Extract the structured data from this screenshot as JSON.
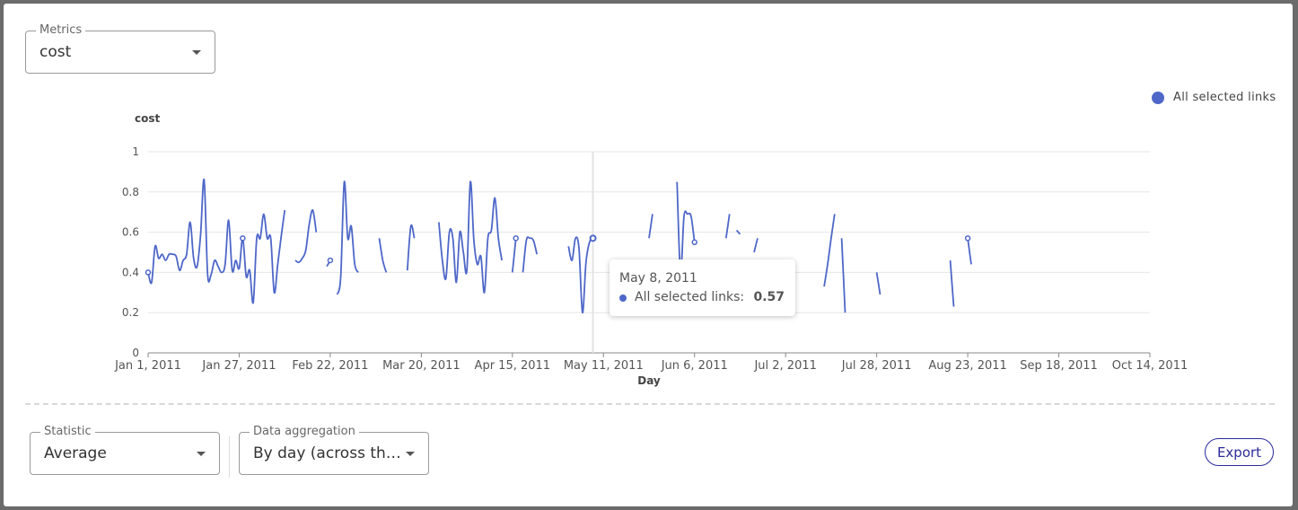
{
  "metrics": {
    "label": "Metrics",
    "value": "cost"
  },
  "statistic": {
    "label": "Statistic",
    "value": "Average"
  },
  "aggregation": {
    "label": "Data aggregation",
    "value": "By day (across the…"
  },
  "export_label": "Export",
  "legend": {
    "label": "All selected links",
    "color": "#4e67c8"
  },
  "tooltip": {
    "date": "May 8, 2011",
    "series": "All selected links:",
    "value": "0.57"
  },
  "colors": {
    "series": "#4e67c8",
    "grid": "#e6e6e6",
    "axis": "#888888"
  },
  "chart_data": {
    "type": "line",
    "ylabel": "cost",
    "xlabel": "Day",
    "ylim": [
      0,
      1
    ],
    "yticks": [
      0,
      0.2,
      0.4,
      0.6,
      0.8,
      1
    ],
    "ytick_labels": [
      "0",
      "0.2",
      "0.4",
      "0.6",
      "0.8",
      "1"
    ],
    "xlim": [
      "2011-01-01",
      "2011-10-14"
    ],
    "xticks": [
      "2011-01-01",
      "2011-01-27",
      "2011-02-22",
      "2011-03-20",
      "2011-04-15",
      "2011-05-11",
      "2011-06-06",
      "2011-07-02",
      "2011-07-28",
      "2011-08-23",
      "2011-09-18",
      "2011-10-14"
    ],
    "xtick_labels": [
      "Jan 1, 2011",
      "Jan 27, 2011",
      "Feb 22, 2011",
      "Mar 20, 2011",
      "Apr 15, 2011",
      "May 11, 2011",
      "Jun 6, 2011",
      "Jul 2, 2011",
      "Jul 28, 2011",
      "Aug 23, 2011",
      "Sep 18, 2011",
      "Oct 14, 2011"
    ],
    "grid": true,
    "legend_position": "top-right",
    "highlight": {
      "x": "2011-05-08",
      "y": 0.57
    },
    "series": [
      {
        "name": "All selected links",
        "segments": [
          [
            [
              "2011-01-01",
              0.4
            ],
            [
              "2011-01-02",
              0.35
            ],
            [
              "2011-01-03",
              0.53
            ],
            [
              "2011-01-04",
              0.47
            ],
            [
              "2011-01-05",
              0.49
            ],
            [
              "2011-01-06",
              0.46
            ],
            [
              "2011-01-07",
              0.49
            ],
            [
              "2011-01-08",
              0.49
            ],
            [
              "2011-01-09",
              0.48
            ],
            [
              "2011-01-10",
              0.41
            ],
            [
              "2011-01-11",
              0.46
            ],
            [
              "2011-01-12",
              0.49
            ],
            [
              "2011-01-13",
              0.65
            ],
            [
              "2011-01-14",
              0.47
            ],
            [
              "2011-01-15",
              0.43
            ],
            [
              "2011-01-16",
              0.59
            ],
            [
              "2011-01-17",
              0.86
            ],
            [
              "2011-01-18",
              0.39
            ],
            [
              "2011-01-19",
              0.39
            ],
            [
              "2011-01-20",
              0.46
            ],
            [
              "2011-01-21",
              0.43
            ],
            [
              "2011-01-22",
              0.4
            ],
            [
              "2011-01-23",
              0.44
            ],
            [
              "2011-01-24",
              0.66
            ],
            [
              "2011-01-25",
              0.41
            ],
            [
              "2011-01-26",
              0.46
            ],
            [
              "2011-01-27",
              0.42
            ],
            [
              "2011-01-28",
              0.57
            ],
            [
              "2011-01-29",
              0.38
            ],
            [
              "2011-01-30",
              0.41
            ],
            [
              "2011-01-31",
              0.25
            ],
            [
              "2011-02-01",
              0.57
            ],
            [
              "2011-02-02",
              0.57
            ],
            [
              "2011-02-03",
              0.69
            ],
            [
              "2011-02-04",
              0.57
            ],
            [
              "2011-02-05",
              0.57
            ],
            [
              "2011-02-06",
              0.3
            ],
            [
              "2011-02-07",
              0.44
            ],
            [
              "2011-02-08",
              0.58
            ],
            [
              "2011-02-09",
              0.71
            ]
          ],
          [
            [
              "2011-02-12",
              0.46
            ],
            [
              "2011-02-13",
              0.45
            ],
            [
              "2011-02-14",
              0.47
            ],
            [
              "2011-02-15",
              0.51
            ],
            [
              "2011-02-16",
              0.64
            ],
            [
              "2011-02-17",
              0.71
            ],
            [
              "2011-02-18",
              0.6
            ]
          ],
          [
            [
              "2011-02-21",
              0.43
            ],
            [
              "2011-02-22",
              0.46
            ]
          ],
          [
            [
              "2011-02-24",
              0.29
            ],
            [
              "2011-02-25",
              0.38
            ],
            [
              "2011-02-26",
              0.85
            ],
            [
              "2011-02-27",
              0.57
            ],
            [
              "2011-02-28",
              0.63
            ],
            [
              "2011-03-01",
              0.44
            ],
            [
              "2011-03-02",
              0.4
            ]
          ],
          [
            [
              "2011-03-08",
              0.57
            ],
            [
              "2011-03-09",
              0.46
            ],
            [
              "2011-03-10",
              0.4
            ]
          ],
          [
            [
              "2011-03-16",
              0.41
            ],
            [
              "2011-03-17",
              0.63
            ],
            [
              "2011-03-18",
              0.57
            ]
          ],
          [
            [
              "2011-03-25",
              0.65
            ],
            [
              "2011-03-26",
              0.46
            ],
            [
              "2011-03-27",
              0.37
            ],
            [
              "2011-03-28",
              0.6
            ],
            [
              "2011-03-29",
              0.57
            ],
            [
              "2011-03-30",
              0.35
            ],
            [
              "2011-03-31",
              0.6
            ],
            [
              "2011-04-01",
              0.5
            ],
            [
              "2011-04-02",
              0.41
            ],
            [
              "2011-04-03",
              0.85
            ],
            [
              "2011-04-04",
              0.56
            ],
            [
              "2011-04-05",
              0.44
            ],
            [
              "2011-04-06",
              0.48
            ],
            [
              "2011-04-07",
              0.3
            ],
            [
              "2011-04-08",
              0.57
            ],
            [
              "2011-04-09",
              0.61
            ],
            [
              "2011-04-10",
              0.77
            ],
            [
              "2011-04-11",
              0.57
            ],
            [
              "2011-04-12",
              0.46
            ]
          ],
          [
            [
              "2011-04-15",
              0.4
            ],
            [
              "2011-04-16",
              0.57
            ]
          ],
          [
            [
              "2011-04-18",
              0.4
            ],
            [
              "2011-04-19",
              0.56
            ],
            [
              "2011-04-20",
              0.57
            ],
            [
              "2011-04-21",
              0.56
            ],
            [
              "2011-04-22",
              0.49
            ]
          ],
          [
            [
              "2011-05-01",
              0.53
            ],
            [
              "2011-05-02",
              0.46
            ],
            [
              "2011-05-03",
              0.57
            ],
            [
              "2011-05-04",
              0.52
            ],
            [
              "2011-05-05",
              0.2
            ],
            [
              "2011-05-06",
              0.45
            ],
            [
              "2011-05-07",
              0.55
            ],
            [
              "2011-05-08",
              0.57
            ]
          ],
          [
            [
              "2011-05-24",
              0.57
            ],
            [
              "2011-05-25",
              0.69
            ]
          ],
          [
            [
              "2011-06-01",
              0.85
            ],
            [
              "2011-06-02",
              0.4
            ],
            [
              "2011-06-03",
              0.68
            ],
            [
              "2011-06-04",
              0.69
            ],
            [
              "2011-06-05",
              0.68
            ],
            [
              "2011-06-06",
              0.55
            ]
          ],
          [
            [
              "2011-06-15",
              0.57
            ],
            [
              "2011-06-16",
              0.69
            ]
          ],
          [
            [
              "2011-06-18",
              0.61
            ],
            [
              "2011-06-19",
              0.59
            ]
          ],
          [
            [
              "2011-06-23",
              0.5
            ],
            [
              "2011-06-24",
              0.57
            ]
          ],
          [
            [
              "2011-06-28",
              0.42
            ],
            [
              "2011-06-29",
              0.41
            ],
            [
              "2011-06-30",
              0.21
            ]
          ],
          [
            [
              "2011-07-13",
              0.33
            ],
            [
              "2011-07-14",
              0.44
            ],
            [
              "2011-07-15",
              0.57
            ],
            [
              "2011-07-16",
              0.69
            ]
          ],
          [
            [
              "2011-07-18",
              0.57
            ],
            [
              "2011-07-19",
              0.2
            ]
          ],
          [
            [
              "2011-07-28",
              0.4
            ],
            [
              "2011-07-29",
              0.29
            ]
          ],
          [
            [
              "2011-08-18",
              0.46
            ],
            [
              "2011-08-19",
              0.23
            ]
          ],
          [
            [
              "2011-08-23",
              0.57
            ],
            [
              "2011-08-24",
              0.44
            ]
          ]
        ]
      }
    ]
  }
}
